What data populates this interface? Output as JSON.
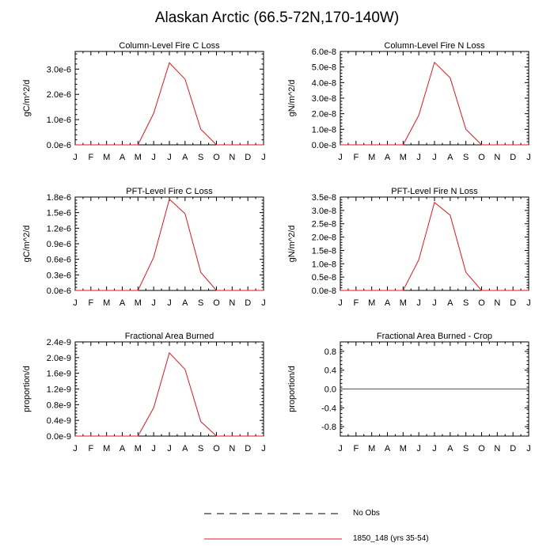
{
  "title": "Alaskan Arctic (66.5-72N,170-140W)",
  "colors": {
    "series": "#e8141c",
    "obs": "#000000",
    "frame": "#000000"
  },
  "legend": {
    "entries": [
      {
        "name": "No Obs",
        "style": "dashed",
        "color": "#000000"
      },
      {
        "name": "1850_148 (yrs 35-54)",
        "style": "solid",
        "color": "#e8141c"
      }
    ]
  },
  "chart_data": [
    {
      "type": "line",
      "title": "Column-Level Fire C Loss",
      "ylabel": "gC/m^2/d",
      "categories": [
        "J",
        "F",
        "M",
        "A",
        "M",
        "J",
        "J",
        "A",
        "S",
        "O",
        "N",
        "D",
        "J"
      ],
      "ylim": [
        0,
        3.7e-06
      ],
      "yticks": [
        0,
        1e-06,
        2e-06,
        3e-06
      ],
      "ytick_labels": [
        "0.0e-6",
        "1.0e-6",
        "2.0e-6",
        "3.0e-6"
      ],
      "series": [
        {
          "name": "1850_148 (yrs 35-54)",
          "values": [
            0,
            0,
            0,
            0,
            0,
            1.25e-06,
            3.25e-06,
            2.6e-06,
            6.2e-07,
            0,
            0,
            0,
            0
          ]
        }
      ]
    },
    {
      "type": "line",
      "title": "Column-Level Fire N Loss",
      "ylabel": "gN/m^2/d",
      "categories": [
        "J",
        "F",
        "M",
        "A",
        "M",
        "J",
        "J",
        "A",
        "S",
        "O",
        "N",
        "D",
        "J"
      ],
      "ylim": [
        0,
        6e-08
      ],
      "yticks": [
        0,
        1e-08,
        2e-08,
        3e-08,
        4e-08,
        5e-08,
        6e-08
      ],
      "ytick_labels": [
        "0.0e-8",
        "1.0e-8",
        "2.0e-8",
        "3.0e-8",
        "4.0e-8",
        "5.0e-8",
        "6.0e-8"
      ],
      "series": [
        {
          "name": "1850_148 (yrs 35-54)",
          "values": [
            0,
            0,
            0,
            0,
            0,
            1.9e-08,
            5.3e-08,
            4.3e-08,
            1e-08,
            0,
            0,
            0,
            0
          ]
        }
      ]
    },
    {
      "type": "line",
      "title": "PFT-Level Fire C Loss",
      "ylabel": "gC/m^2/d",
      "categories": [
        "J",
        "F",
        "M",
        "A",
        "M",
        "J",
        "J",
        "A",
        "S",
        "O",
        "N",
        "D",
        "J"
      ],
      "ylim": [
        0,
        1.8e-06
      ],
      "yticks": [
        0,
        3e-07,
        6e-07,
        9e-07,
        1.2e-06,
        1.5e-06,
        1.8e-06
      ],
      "ytick_labels": [
        "0.0e-6",
        "0.3e-6",
        "0.6e-6",
        "0.9e-6",
        "1.2e-6",
        "1.5e-6",
        "1.8e-6"
      ],
      "series": [
        {
          "name": "1850_148 (yrs 35-54)",
          "values": [
            0,
            0,
            0,
            0,
            0,
            6.4e-07,
            1.76e-06,
            1.48e-06,
            3.5e-07,
            0,
            0,
            0,
            0
          ]
        }
      ]
    },
    {
      "type": "line",
      "title": "PFT-Level Fire N Loss",
      "ylabel": "gN/m^2/d",
      "categories": [
        "J",
        "F",
        "M",
        "A",
        "M",
        "J",
        "J",
        "A",
        "S",
        "O",
        "N",
        "D",
        "J"
      ],
      "ylim": [
        0,
        3.5e-08
      ],
      "yticks": [
        0,
        5e-09,
        1e-08,
        1.5e-08,
        2e-08,
        2.5e-08,
        3e-08,
        3.5e-08
      ],
      "ytick_labels": [
        "0.0e-8",
        "0.5e-8",
        "1.0e-8",
        "1.5e-8",
        "2.0e-8",
        "2.5e-8",
        "3.0e-8",
        "3.5e-8"
      ],
      "series": [
        {
          "name": "1850_148 (yrs 35-54)",
          "values": [
            0,
            0,
            0,
            0,
            0,
            1.15e-08,
            3.3e-08,
            2.82e-08,
            6.8e-09,
            0,
            0,
            0,
            0
          ]
        }
      ]
    },
    {
      "type": "line",
      "title": "Fractional Area Burned",
      "ylabel": "proportion/d",
      "categories": [
        "J",
        "F",
        "M",
        "A",
        "M",
        "J",
        "J",
        "A",
        "S",
        "O",
        "N",
        "D",
        "J"
      ],
      "ylim": [
        0,
        2.4e-09
      ],
      "yticks": [
        0,
        4e-10,
        8e-10,
        1.2e-09,
        1.6e-09,
        2e-09,
        2.4e-09
      ],
      "ytick_labels": [
        "0.0e-9",
        "0.4e-9",
        "0.8e-9",
        "1.2e-9",
        "1.6e-9",
        "2.0e-9",
        "2.4e-9"
      ],
      "series": [
        {
          "name": "1850_148 (yrs 35-54)",
          "values": [
            0,
            0,
            0,
            0,
            0,
            7.2e-10,
            2.12e-09,
            1.7e-09,
            3.7e-10,
            0,
            0,
            0,
            0
          ]
        }
      ]
    },
    {
      "type": "line",
      "title": "Fractional Area Burned - Crop",
      "ylabel": "proportion/d",
      "categories": [
        "J",
        "F",
        "M",
        "A",
        "M",
        "J",
        "J",
        "A",
        "S",
        "O",
        "N",
        "D",
        "J"
      ],
      "ylim": [
        -1.0,
        1.0
      ],
      "yticks": [
        -0.8,
        -0.4,
        0.0,
        0.4,
        0.8
      ],
      "ytick_labels": [
        "-0.8",
        "-0.4",
        "0.0",
        "0.4",
        "0.8"
      ],
      "series": [
        {
          "name": "1850_148 (yrs 35-54)",
          "values": [
            0,
            0,
            0,
            0,
            0,
            0,
            0,
            0,
            0,
            0,
            0,
            0,
            0
          ]
        }
      ]
    }
  ]
}
